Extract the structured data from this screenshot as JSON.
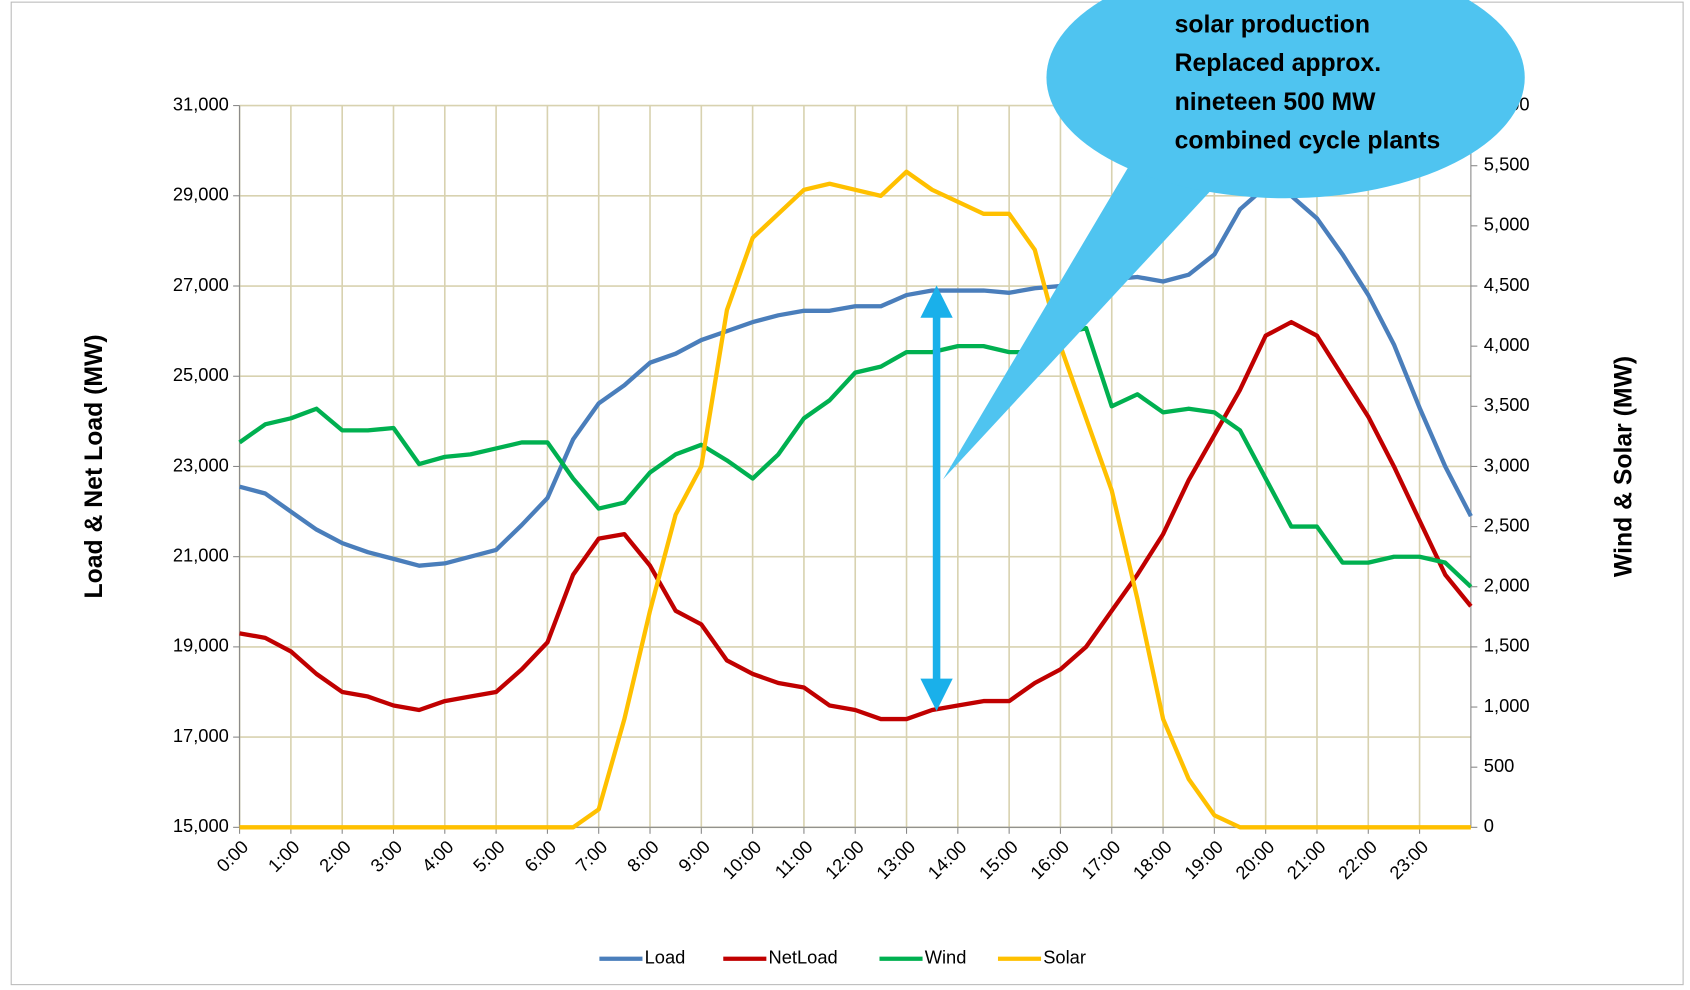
{
  "chart_data": {
    "type": "line",
    "annotation": [
      "solar production",
      "Replaced approx.",
      "nineteen 500 MW",
      "combined cycle plants"
    ],
    "ylabel": "Load & Net Load (MW)",
    "y2label": "Wind & Solar (MW)",
    "grid": true,
    "legend": "bottom",
    "x": [
      0,
      0.5,
      1,
      1.5,
      2,
      2.5,
      3,
      3.5,
      4,
      4.5,
      5,
      5.5,
      6,
      6.5,
      7,
      7.5,
      8,
      8.5,
      9,
      9.5,
      10,
      10.5,
      11,
      11.5,
      12,
      12.5,
      13,
      13.5,
      14,
      14.5,
      15,
      15.5,
      16,
      16.5,
      17,
      17.5,
      18,
      18.5,
      19,
      19.5,
      20,
      20.5,
      21,
      21.5,
      22,
      22.5,
      23,
      23.5,
      24
    ],
    "xlim": [
      0,
      24
    ],
    "xticks": [
      {
        "value": 0,
        "label": "0:00"
      },
      {
        "value": 1,
        "label": "1:00"
      },
      {
        "value": 2,
        "label": "2:00"
      },
      {
        "value": 3,
        "label": "3:00"
      },
      {
        "value": 4,
        "label": "4:00"
      },
      {
        "value": 5,
        "label": "5:00"
      },
      {
        "value": 6,
        "label": "6:00"
      },
      {
        "value": 7,
        "label": "7:00"
      },
      {
        "value": 8,
        "label": "8:00"
      },
      {
        "value": 9,
        "label": "9:00"
      },
      {
        "value": 10,
        "label": "10:00"
      },
      {
        "value": 11,
        "label": "11:00"
      },
      {
        "value": 12,
        "label": "12:00"
      },
      {
        "value": 13,
        "label": "13:00"
      },
      {
        "value": 14,
        "label": "14:00"
      },
      {
        "value": 15,
        "label": "15:00"
      },
      {
        "value": 16,
        "label": "16:00"
      },
      {
        "value": 17,
        "label": "17:00"
      },
      {
        "value": 18,
        "label": "18:00"
      },
      {
        "value": 19,
        "label": "19:00"
      },
      {
        "value": 20,
        "label": "20:00"
      },
      {
        "value": 21,
        "label": "21:00"
      },
      {
        "value": 22,
        "label": "22:00"
      },
      {
        "value": 23,
        "label": "23:00"
      }
    ],
    "ylim": [
      15000,
      31000
    ],
    "yticks": [
      {
        "value": 15000,
        "label": "15,000"
      },
      {
        "value": 17000,
        "label": "17,000"
      },
      {
        "value": 19000,
        "label": "19,000"
      },
      {
        "value": 21000,
        "label": "21,000"
      },
      {
        "value": 23000,
        "label": "23,000"
      },
      {
        "value": 25000,
        "label": "25,000"
      },
      {
        "value": 27000,
        "label": "27,000"
      },
      {
        "value": 29000,
        "label": "29,000"
      },
      {
        "value": 31000,
        "label": "31,000"
      }
    ],
    "y2lim": [
      0,
      6000
    ],
    "y2ticks": [
      0,
      500,
      {
        "value": 1000,
        "label": "1,000"
      },
      {
        "value": 1500,
        "label": "1,500"
      },
      {
        "value": 2000,
        "label": "2,000"
      },
      {
        "value": 2500,
        "label": "2,500"
      },
      {
        "value": 3000,
        "label": "3,000"
      },
      {
        "value": 3500,
        "label": "3,500"
      },
      {
        "value": 4000,
        "label": "4,000"
      },
      {
        "value": 4500,
        "label": "4,500"
      },
      {
        "value": 5000,
        "label": "5,000"
      },
      {
        "value": 5500,
        "label": "5,500"
      },
      {
        "value": 6000,
        "label": "6,000"
      }
    ],
    "series": [
      {
        "name": "Load",
        "color": "#4a7ebb",
        "values": [
          22550,
          22400,
          22000,
          21600,
          21300,
          21100,
          20950,
          20800,
          20850,
          21000,
          21150,
          21700,
          22300,
          23600,
          24400,
          24800,
          25300,
          25500,
          25800,
          26000,
          26200,
          26350,
          26450,
          26450,
          26550,
          26550,
          26800,
          26900,
          26900,
          26900,
          26850,
          26950,
          27000,
          27100,
          27150,
          27200,
          27100,
          27250,
          27700,
          28700,
          29200,
          29000,
          28500,
          27700,
          26800,
          25700,
          24300,
          23000,
          21900
        ]
      },
      {
        "name": "NetLoad",
        "color": "#c00000",
        "values": [
          19300,
          19200,
          18900,
          18400,
          18000,
          17900,
          17700,
          17600,
          17800,
          17900,
          18000,
          18500,
          19100,
          20600,
          21400,
          21500,
          20800,
          19800,
          19500,
          18700,
          18400,
          18200,
          18100,
          17700,
          17600,
          17400,
          17400,
          17600,
          17700,
          17800,
          17800,
          18200,
          18500,
          19000,
          19800,
          20600,
          21500,
          22700,
          23700,
          24700,
          25900,
          26200,
          25900,
          25000,
          24100,
          23000,
          21800,
          20600,
          19900
        ]
      },
      {
        "name": "Wind",
        "color": "#00b050",
        "axis": "y2",
        "values": [
          3200,
          3350,
          3400,
          3480,
          3300,
          3300,
          3320,
          3020,
          3080,
          3100,
          3150,
          3200,
          3200,
          2900,
          2650,
          2700,
          2950,
          3100,
          3180,
          3050,
          2900,
          3100,
          3400,
          3550,
          3780,
          3830,
          3950,
          3950,
          4000,
          4000,
          3950,
          3950,
          4100,
          4150,
          3500,
          3600,
          3450,
          3480,
          3450,
          3300,
          2900,
          2500,
          2500,
          2200,
          2200,
          2250,
          2250,
          2200,
          2000
        ]
      },
      {
        "name": "Solar",
        "color": "#ffc000",
        "axis": "y2",
        "values": [
          0,
          0,
          0,
          0,
          0,
          0,
          0,
          0,
          0,
          0,
          0,
          0,
          0,
          0,
          150,
          900,
          1800,
          2600,
          3000,
          4300,
          4900,
          5100,
          5300,
          5350,
          5300,
          5250,
          5450,
          5300,
          5200,
          5100,
          5100,
          4800,
          4000,
          3400,
          2800,
          1900,
          900,
          400,
          100,
          0,
          0,
          0,
          0,
          0,
          0,
          0,
          0,
          0,
          0
        ]
      }
    ]
  }
}
